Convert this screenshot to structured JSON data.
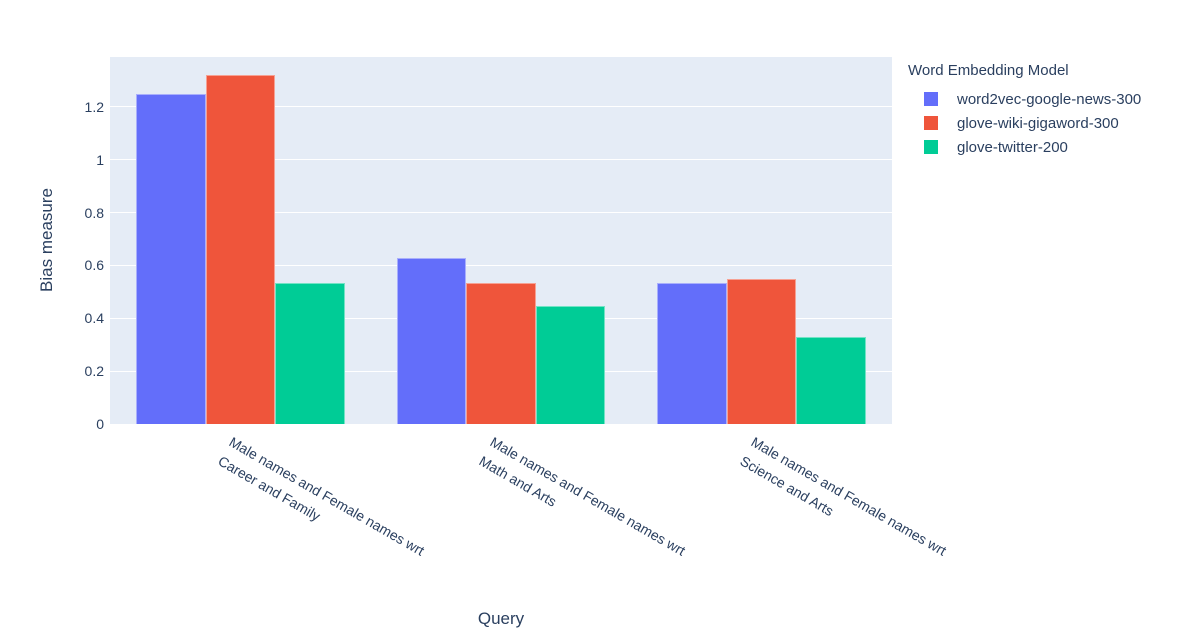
{
  "chart_data": {
    "type": "bar",
    "xlabel": "Query",
    "ylabel": "Bias measure",
    "legend_title": "Word Embedding Model",
    "legend_position": "right",
    "grid": true,
    "plot_bg_color": "#e5ecf6",
    "grid_color": "#ffffff",
    "font_color": "#2a3f5f",
    "tick_angle_deg": 30,
    "categories": [
      {
        "line1": "Male names and Female names wrt",
        "line2": "Career and Family"
      },
      {
        "line1": "Male names and Female names wrt",
        "line2": "Math and Arts"
      },
      {
        "line1": "Male names and Female names wrt",
        "line2": "Science and Arts"
      }
    ],
    "series": [
      {
        "name": "word2vec-google-news-300",
        "color": "#636efa",
        "values": [
          1.25,
          0.63,
          0.535
        ]
      },
      {
        "name": "glove-wiki-gigaword-300",
        "color": "#ef553b",
        "values": [
          1.32,
          0.535,
          0.548
        ]
      },
      {
        "name": "glove-twitter-200",
        "color": "#00cc96",
        "values": [
          0.535,
          0.445,
          0.33
        ]
      }
    ],
    "ylim": [
      0,
      1.389
    ],
    "yticks": [
      {
        "value": 0,
        "label": "0"
      },
      {
        "value": 0.2,
        "label": "0.2"
      },
      {
        "value": 0.4,
        "label": "0.4"
      },
      {
        "value": 0.6,
        "label": "0.6"
      },
      {
        "value": 0.8,
        "label": "0.8"
      },
      {
        "value": 1,
        "label": "1"
      },
      {
        "value": 1.2,
        "label": "1.2"
      }
    ]
  }
}
